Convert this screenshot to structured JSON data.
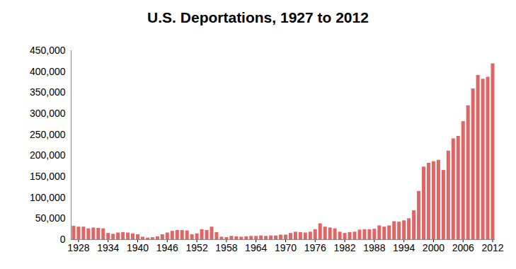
{
  "chart_data": {
    "type": "bar",
    "title": "U.S. Deportations, 1927 to 2012",
    "x": [
      1927,
      1928,
      1929,
      1930,
      1931,
      1932,
      1933,
      1934,
      1935,
      1936,
      1937,
      1938,
      1939,
      1940,
      1941,
      1942,
      1943,
      1944,
      1945,
      1946,
      1947,
      1948,
      1949,
      1950,
      1951,
      1952,
      1953,
      1954,
      1955,
      1956,
      1957,
      1958,
      1959,
      1960,
      1961,
      1962,
      1963,
      1964,
      1965,
      1966,
      1967,
      1968,
      1969,
      1970,
      1971,
      1972,
      1973,
      1974,
      1975,
      1976,
      1977,
      1978,
      1979,
      1980,
      1981,
      1982,
      1983,
      1984,
      1985,
      1986,
      1987,
      1988,
      1989,
      1990,
      1991,
      1992,
      1993,
      1994,
      1995,
      1996,
      1997,
      1998,
      1999,
      2000,
      2001,
      2002,
      2003,
      2004,
      2005,
      2006,
      2007,
      2008,
      2009,
      2010,
      2011,
      2012
    ],
    "values": [
      32000,
      30000,
      30000,
      26000,
      28000,
      27000,
      26000,
      15000,
      13000,
      16000,
      17000,
      16000,
      14000,
      12000,
      6000,
      4000,
      5000,
      7000,
      12000,
      16000,
      20000,
      22000,
      22000,
      21000,
      12000,
      14000,
      24000,
      22000,
      30000,
      17000,
      6000,
      5000,
      8000,
      7000,
      6000,
      7000,
      8000,
      8000,
      9000,
      8000,
      9000,
      9000,
      11000,
      11000,
      15000,
      18000,
      17000,
      16000,
      18000,
      24000,
      38000,
      30000,
      28000,
      26000,
      18000,
      15000,
      17000,
      18000,
      23000,
      24000,
      24000,
      25000,
      33000,
      30000,
      33000,
      43000,
      42000,
      45000,
      50000,
      69000,
      115000,
      173000,
      182000,
      186000,
      189000,
      165000,
      211000,
      240000,
      246000,
      281000,
      319000,
      359000,
      391000,
      382000,
      387000,
      419000
    ],
    "color": "#e06666",
    "xlim": [
      1926.5,
      2012.5
    ],
    "xticks": [
      1928,
      1934,
      1940,
      1946,
      1952,
      1958,
      1964,
      1970,
      1976,
      1982,
      1988,
      1994,
      2000,
      2006,
      2012
    ],
    "ylim": [
      0,
      450000
    ],
    "yticks": [
      0,
      {
        "value": 50000,
        "label": "50,000"
      },
      {
        "value": 100000,
        "label": "100,000"
      },
      {
        "value": 150000,
        "label": "150,000"
      },
      {
        "value": 200000,
        "label": "200,000"
      },
      {
        "value": 250000,
        "label": "250,000"
      },
      {
        "value": 300000,
        "label": "300,000"
      },
      {
        "value": 350000,
        "label": "350,000"
      },
      {
        "value": 400000,
        "label": "400,000"
      },
      {
        "value": 450000,
        "label": "450,000"
      }
    ],
    "grid": false
  }
}
